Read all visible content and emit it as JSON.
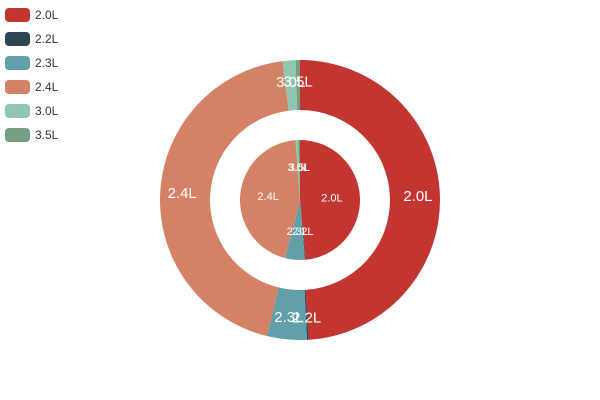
{
  "chart_data": {
    "type": "pie",
    "categories": [
      "2.0L",
      "2.2L",
      "2.3L",
      "2.4L",
      "3.0L",
      "3.5L"
    ],
    "colors": [
      "#c23531",
      "#2f4554",
      "#61a0a8",
      "#d48265",
      "#91c7ae",
      "#749f83"
    ],
    "legend_position": "top-left",
    "series": [
      {
        "ring": "inner",
        "values": [
          {
            "label": "2.0L",
            "value": 48.5
          },
          {
            "label": "2.2L",
            "value": 0.2
          },
          {
            "label": "2.3L",
            "value": 5.3
          },
          {
            "label": "2.4L",
            "value": 44.8
          },
          {
            "label": "3.0L",
            "value": 0.7
          },
          {
            "label": "3.5L",
            "value": 0.5
          }
        ]
      },
      {
        "ring": "outer",
        "values": [
          {
            "label": "2.0L",
            "value": 49.0
          },
          {
            "label": "2.2L",
            "value": 0.2
          },
          {
            "label": "2.3L",
            "value": 4.6
          },
          {
            "label": "2.4L",
            "value": 44.2
          },
          {
            "label": "3.0L",
            "value": 1.5
          },
          {
            "label": "3.5L",
            "value": 0.5
          }
        ]
      }
    ]
  }
}
